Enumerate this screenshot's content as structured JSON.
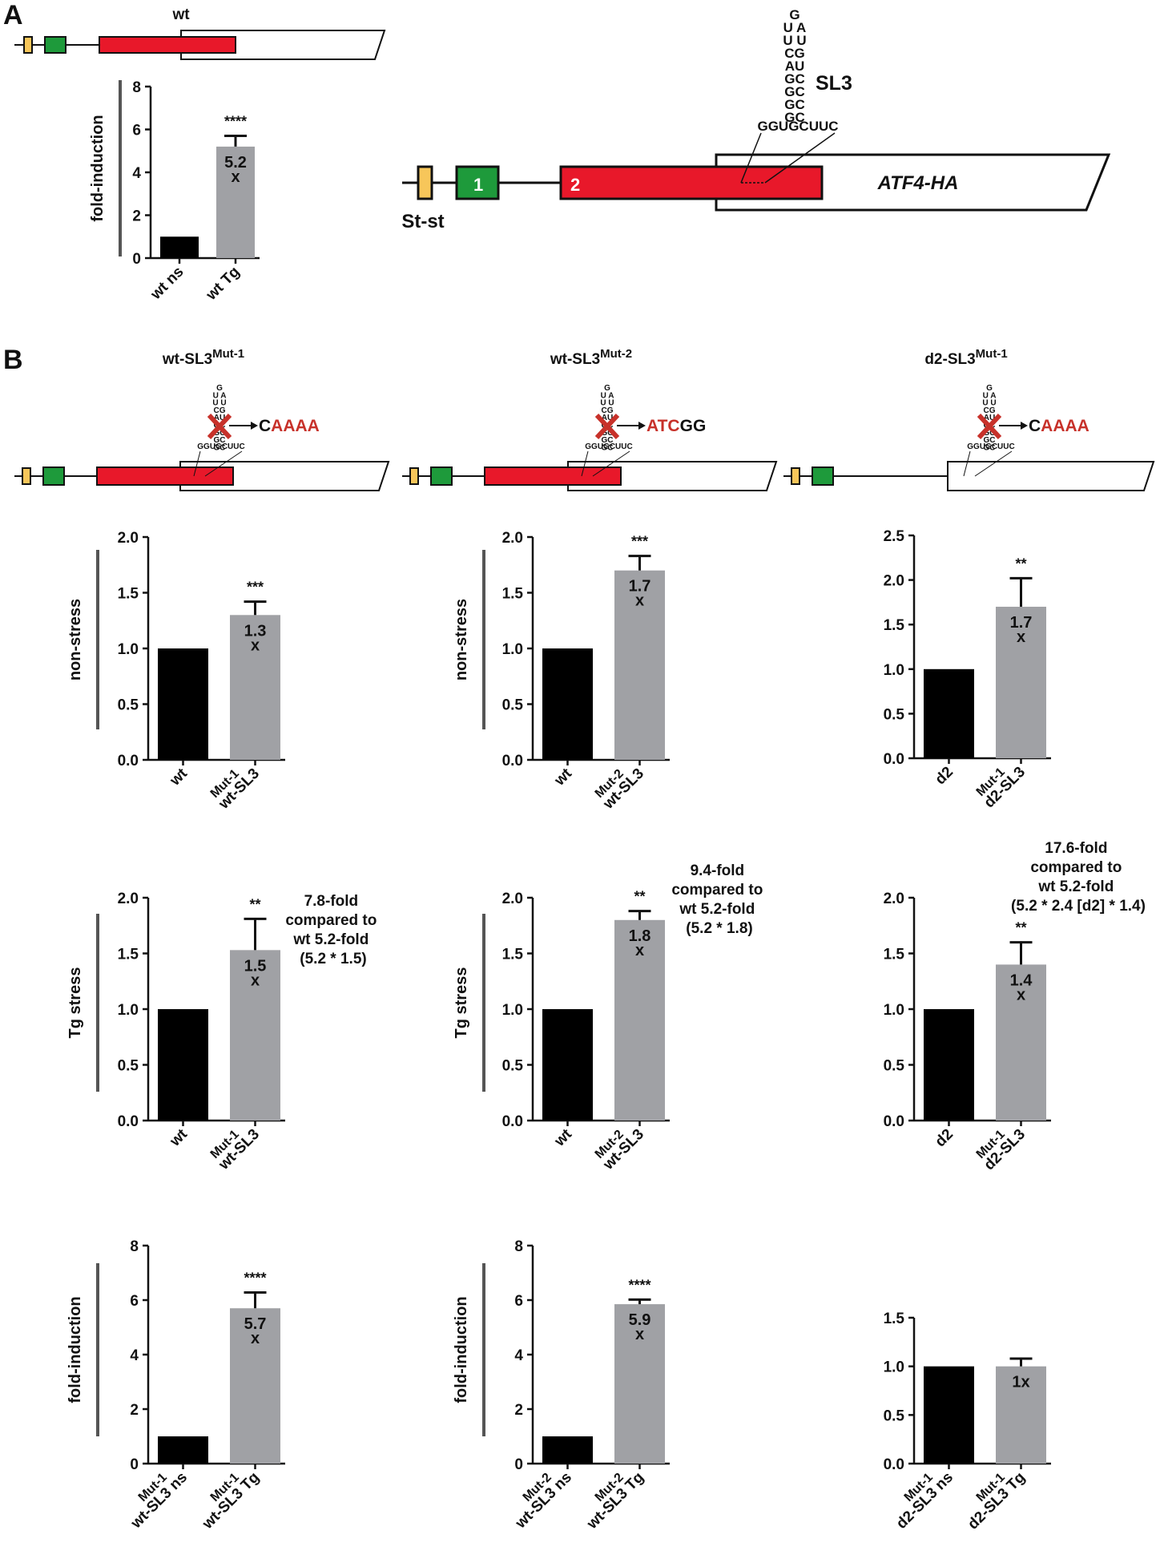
{
  "colors": {
    "black_bar": "#000000",
    "gray_bar": "#a0a1a5",
    "exon_red": "#e8182a",
    "exon_green": "#1e9a3b",
    "ststem_yellow": "#f7c65a",
    "mutation_red": "#c7312a",
    "axis": "#111111",
    "ylabel_rule": "#555555"
  },
  "panel_labels": {
    "a": "A",
    "b": "B"
  },
  "diagrams": {
    "a_small": {
      "label": "wt"
    },
    "a_large": {
      "exon1": "1",
      "exon2": "2",
      "atf4": "ATF4-HA",
      "ststem": "St-st",
      "sl3": "SL3",
      "stem_rows": [
        "G",
        "U  A",
        "U  U",
        "CG",
        "AU",
        "GC",
        "GC",
        "GC",
        "GC"
      ],
      "base": "GGUGCUUC"
    },
    "b1": {
      "title_main": "wt-SL3",
      "title_sup": "Mut-1",
      "mut_prefix": "C",
      "mut_red": "AAAA",
      "mut_suffix": ""
    },
    "b2": {
      "title_main": "wt-SL3",
      "title_sup": "Mut-2",
      "mut_prefix": "",
      "mut_red": "ATC",
      "mut_suffix": "GG"
    },
    "b3": {
      "title_main": "d2-SL3",
      "title_sup": "Mut-1",
      "mut_prefix": "C",
      "mut_red": "AAAA",
      "mut_suffix": ""
    },
    "small_stem_rows": [
      "G",
      "U A",
      "U U",
      "CG",
      "AU",
      "GC",
      "GC",
      "GC",
      "GC"
    ],
    "small_base": "GGUGCUUC"
  },
  "annotations": {
    "b1_tg": [
      "7.8-fold",
      "compared to",
      "wt 5.2-fold",
      "(5.2 * 1.5)"
    ],
    "b2_tg": [
      "9.4-fold",
      "compared to",
      "wt 5.2-fold",
      "(5.2 * 1.8)"
    ],
    "b3_tg": [
      "17.6-fold",
      "compared to",
      "wt 5.2-fold",
      "(5.2 * 2.4 [d2] * 1.4)"
    ]
  },
  "chart_data": [
    {
      "id": "A",
      "type": "bar",
      "ylabel": "fold-induction",
      "ylim": [
        0,
        8
      ],
      "yticks": [
        "0",
        "2",
        "4",
        "6",
        "8"
      ],
      "categories": [
        {
          "main": "wt  ns",
          "sup": ""
        },
        {
          "main": "wt Tg",
          "sup": ""
        }
      ],
      "values": [
        1.0,
        5.2
      ],
      "errors": [
        0,
        0.5
      ],
      "stars": [
        "",
        "****"
      ],
      "bar_labels": [
        [
          "",
          ""
        ],
        [
          "5.2",
          "x"
        ]
      ]
    },
    {
      "id": "B1-nonstress",
      "type": "bar",
      "ylabel": "non-stress",
      "ylim": [
        0,
        2.0
      ],
      "yticks": [
        "0.0",
        "0.5",
        "1.0",
        "1.5",
        "2.0"
      ],
      "categories": [
        {
          "main": "wt",
          "sup": ""
        },
        {
          "main": "wt-SL3",
          "sup": "Mut-1"
        }
      ],
      "values": [
        1.0,
        1.3
      ],
      "errors": [
        0,
        0.12
      ],
      "stars": [
        "",
        "***"
      ],
      "bar_labels": [
        [
          "",
          ""
        ],
        [
          "1.3",
          "x"
        ]
      ]
    },
    {
      "id": "B2-nonstress",
      "type": "bar",
      "ylabel": "non-stress",
      "ylim": [
        0,
        2.0
      ],
      "yticks": [
        "0.0",
        "0.5",
        "1.0",
        "1.5",
        "2.0"
      ],
      "categories": [
        {
          "main": "wt",
          "sup": ""
        },
        {
          "main": "wt-SL3",
          "sup": "Mut-2"
        }
      ],
      "values": [
        1.0,
        1.7
      ],
      "errors": [
        0,
        0.13
      ],
      "stars": [
        "",
        "***"
      ],
      "bar_labels": [
        [
          "",
          ""
        ],
        [
          "1.7",
          "x"
        ]
      ]
    },
    {
      "id": "B3-nonstress",
      "type": "bar",
      "ylabel": "",
      "ylim": [
        0,
        2.5
      ],
      "yticks": [
        "0.0",
        "0.5",
        "1.0",
        "1.5",
        "2.0",
        "2.5"
      ],
      "categories": [
        {
          "main": "d2",
          "sup": ""
        },
        {
          "main": "d2-SL3",
          "sup": "Mut-1"
        }
      ],
      "values": [
        1.0,
        1.7
      ],
      "errors": [
        0,
        0.32
      ],
      "stars": [
        "",
        "**"
      ],
      "bar_labels": [
        [
          "",
          ""
        ],
        [
          "1.7",
          "x"
        ]
      ]
    },
    {
      "id": "B1-tg",
      "type": "bar",
      "ylabel": "Tg stress",
      "ylim": [
        0,
        2.0
      ],
      "yticks": [
        "0.0",
        "0.5",
        "1.0",
        "1.5",
        "2.0"
      ],
      "categories": [
        {
          "main": "wt",
          "sup": ""
        },
        {
          "main": "wt-SL3",
          "sup": "Mut-1"
        }
      ],
      "values": [
        1.0,
        1.53
      ],
      "errors": [
        0,
        0.28
      ],
      "stars": [
        "",
        "**"
      ],
      "bar_labels": [
        [
          "",
          ""
        ],
        [
          "1.5",
          "x"
        ]
      ]
    },
    {
      "id": "B2-tg",
      "type": "bar",
      "ylabel": "Tg stress",
      "ylim": [
        0,
        2.0
      ],
      "yticks": [
        "0.0",
        "0.5",
        "1.0",
        "1.5",
        "2.0"
      ],
      "categories": [
        {
          "main": "wt",
          "sup": ""
        },
        {
          "main": "wt-SL3",
          "sup": "Mut-2"
        }
      ],
      "values": [
        1.0,
        1.8
      ],
      "errors": [
        0,
        0.08
      ],
      "stars": [
        "",
        "**"
      ],
      "bar_labels": [
        [
          "",
          ""
        ],
        [
          "1.8",
          "x"
        ]
      ]
    },
    {
      "id": "B3-tg",
      "type": "bar",
      "ylabel": "",
      "ylim": [
        0,
        2.0
      ],
      "yticks": [
        "0.0",
        "0.5",
        "1.0",
        "1.5",
        "2.0"
      ],
      "categories": [
        {
          "main": "d2",
          "sup": ""
        },
        {
          "main": "d2-SL3",
          "sup": "Mut-1"
        }
      ],
      "values": [
        1.0,
        1.4
      ],
      "errors": [
        0,
        0.2
      ],
      "stars": [
        "",
        "**"
      ],
      "bar_labels": [
        [
          "",
          ""
        ],
        [
          "1.4",
          "x"
        ]
      ]
    },
    {
      "id": "B1-fold",
      "type": "bar",
      "ylabel": "fold-induction",
      "ylim": [
        0,
        8
      ],
      "yticks": [
        "0",
        "2",
        "4",
        "6",
        "8"
      ],
      "categories": [
        {
          "main": "wt-SL3 ns",
          "sup": "Mut-1"
        },
        {
          "main": "wt-SL3 Tg",
          "sup": "Mut-1"
        }
      ],
      "values": [
        1.0,
        5.7
      ],
      "errors": [
        0,
        0.58
      ],
      "stars": [
        "",
        "****"
      ],
      "bar_labels": [
        [
          "",
          ""
        ],
        [
          "5.7",
          "x"
        ]
      ]
    },
    {
      "id": "B2-fold",
      "type": "bar",
      "ylabel": "fold-induction",
      "ylim": [
        0,
        8
      ],
      "yticks": [
        "0",
        "2",
        "4",
        "6",
        "8"
      ],
      "categories": [
        {
          "main": "wt-SL3 ns",
          "sup": "Mut-2"
        },
        {
          "main": "wt-SL3 Tg",
          "sup": "Mut-2"
        }
      ],
      "values": [
        1.0,
        5.85
      ],
      "errors": [
        0,
        0.17
      ],
      "stars": [
        "",
        "****"
      ],
      "bar_labels": [
        [
          "",
          ""
        ],
        [
          "5.9",
          "x"
        ]
      ]
    },
    {
      "id": "B3-fold",
      "type": "bar",
      "ylabel": "",
      "ylim": [
        0,
        1.5
      ],
      "yticks": [
        "0.0",
        "0.5",
        "1.0",
        "1.5"
      ],
      "categories": [
        {
          "main": "d2-SL3 ns",
          "sup": "Mut-1"
        },
        {
          "main": "d2-SL3 Tg",
          "sup": "Mut-1"
        }
      ],
      "values": [
        1.0,
        1.0
      ],
      "errors": [
        0,
        0.08
      ],
      "stars": [
        "",
        ""
      ],
      "bar_labels": [
        [
          "",
          ""
        ],
        [
          "1x",
          ""
        ]
      ]
    }
  ]
}
